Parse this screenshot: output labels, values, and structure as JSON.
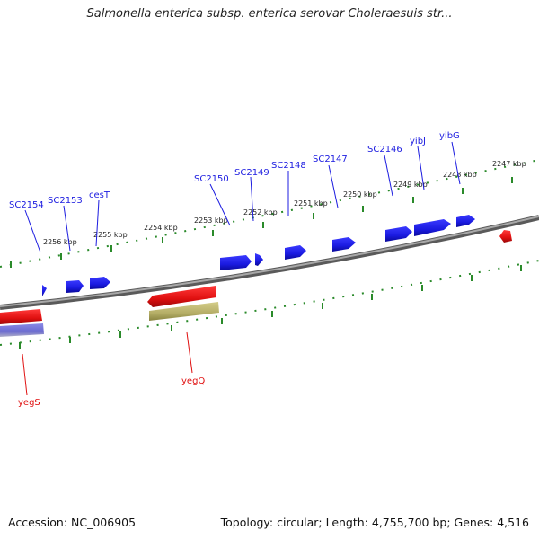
{
  "title": "Salmonella enterica subsp. enterica serovar Choleraesuis str...",
  "footer": {
    "accession": "Accession: NC_006905",
    "summary": "Topology: circular; Length: 4,755,700 bp; Genes: 4,516"
  },
  "colors": {
    "forward_gene": "#1c1ce0",
    "reverse_gene": "#e01010",
    "pseudo_gene": "#b4ad66",
    "rna_gene": "#6a6ad0",
    "backbone": "#888888",
    "ticks": "#2a8a2a"
  },
  "tick_labels": [
    "2247 kbp",
    "2248 kbp",
    "2249 kbp",
    "2250 kbp",
    "2251 kbp",
    "2252 kbp",
    "2253 kbp",
    "2254 kbp",
    "2255 kbp",
    "2256 kbp"
  ],
  "genes_forward": [
    {
      "label": "SC2146"
    },
    {
      "label": "yibJ"
    },
    {
      "label": "yibG"
    },
    {
      "label": "SC2147"
    },
    {
      "label": "SC2148"
    },
    {
      "label": "SC2149"
    },
    {
      "label": "SC2150"
    },
    {
      "label": "cesT"
    },
    {
      "label": "SC2153"
    },
    {
      "label": "SC2154"
    }
  ],
  "genes_reverse": [
    {
      "label": "yegQ"
    },
    {
      "label": "yegS"
    }
  ]
}
